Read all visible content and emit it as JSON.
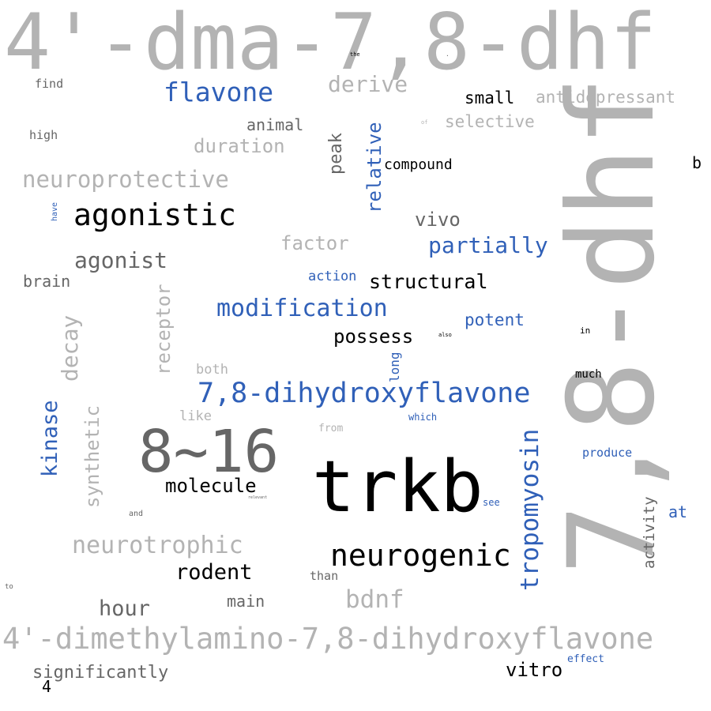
{
  "colors": {
    "black": "#000000",
    "dark_gray": "#666666",
    "light_gray": "#b3b3b3",
    "blue": "#3060b8"
  },
  "words": [
    {
      "text": "4'-dma-7,8-dhf",
      "color": "light_gray",
      "orientation": "horizontal"
    },
    {
      "text": "7,8-dhf",
      "color": "light_gray",
      "orientation": "vertical"
    },
    {
      "text": "trkb",
      "color": "black",
      "orientation": "horizontal"
    },
    {
      "text": "8~16",
      "color": "dark_gray",
      "orientation": "horizontal"
    },
    {
      "text": "4'-dimethylamino-7,8-dihydroxyflavone",
      "color": "light_gray",
      "orientation": "horizontal"
    },
    {
      "text": "7,8-dihydroxyflavone",
      "color": "blue",
      "orientation": "horizontal"
    },
    {
      "text": "agonistic",
      "color": "black",
      "orientation": "horizontal"
    },
    {
      "text": "neurogenic",
      "color": "black",
      "orientation": "horizontal"
    },
    {
      "text": "tropomyosin",
      "color": "blue",
      "orientation": "vertical"
    },
    {
      "text": "flavone",
      "color": "blue",
      "orientation": "horizontal"
    },
    {
      "text": "modification",
      "color": "blue",
      "orientation": "horizontal"
    },
    {
      "text": "neurotrophic",
      "color": "light_gray",
      "orientation": "horizontal"
    },
    {
      "text": "neuroprotective",
      "color": "light_gray",
      "orientation": "horizontal"
    },
    {
      "text": "agonist",
      "color": "dark_gray",
      "orientation": "horizontal"
    },
    {
      "text": "kinase",
      "color": "blue",
      "orientation": "vertical"
    },
    {
      "text": "decay",
      "color": "light_gray",
      "orientation": "vertical"
    },
    {
      "text": "synthetic",
      "color": "light_gray",
      "orientation": "vertical"
    },
    {
      "text": "receptor",
      "color": "light_gray",
      "orientation": "vertical"
    },
    {
      "text": "rodent",
      "color": "black",
      "orientation": "horizontal"
    },
    {
      "text": "bdnf",
      "color": "light_gray",
      "orientation": "horizontal"
    },
    {
      "text": "hour",
      "color": "dark_gray",
      "orientation": "horizontal"
    },
    {
      "text": "molecule",
      "color": "black",
      "orientation": "horizontal"
    },
    {
      "text": "partially",
      "color": "blue",
      "orientation": "horizontal"
    },
    {
      "text": "structural",
      "color": "black",
      "orientation": "horizontal"
    },
    {
      "text": "possess",
      "color": "black",
      "orientation": "horizontal"
    },
    {
      "text": "derive",
      "color": "light_gray",
      "orientation": "horizontal"
    },
    {
      "text": "relative",
      "color": "blue",
      "orientation": "vertical"
    },
    {
      "text": "significantly",
      "color": "dark_gray",
      "orientation": "horizontal"
    },
    {
      "text": "vitro",
      "color": "black",
      "orientation": "horizontal"
    },
    {
      "text": "vivo",
      "color": "dark_gray",
      "orientation": "horizontal"
    },
    {
      "text": "factor",
      "color": "light_gray",
      "orientation": "horizontal"
    },
    {
      "text": "duration",
      "color": "light_gray",
      "orientation": "horizontal"
    },
    {
      "text": "peak",
      "color": "dark_gray",
      "orientation": "vertical"
    },
    {
      "text": "antidepressant",
      "color": "light_gray",
      "orientation": "horizontal"
    },
    {
      "text": "selective",
      "color": "light_gray",
      "orientation": "horizontal"
    },
    {
      "text": "small",
      "color": "black",
      "orientation": "horizontal"
    },
    {
      "text": "potent",
      "color": "blue",
      "orientation": "horizontal"
    },
    {
      "text": "activity",
      "color": "dark_gray",
      "orientation": "vertical"
    },
    {
      "text": "animal",
      "color": "dark_gray",
      "orientation": "horizontal"
    },
    {
      "text": "brain",
      "color": "dark_gray",
      "orientation": "horizontal"
    },
    {
      "text": "main",
      "color": "dark_gray",
      "orientation": "horizontal"
    },
    {
      "text": "compound",
      "color": "black",
      "orientation": "horizontal"
    },
    {
      "text": "at",
      "color": "blue",
      "orientation": "horizontal"
    },
    {
      "text": "action",
      "color": "blue",
      "orientation": "horizontal"
    },
    {
      "text": "long",
      "color": "blue",
      "orientation": "vertical"
    },
    {
      "text": "both",
      "color": "light_gray",
      "orientation": "horizontal"
    },
    {
      "text": "like",
      "color": "light_gray",
      "orientation": "horizontal"
    },
    {
      "text": "produce",
      "color": "blue",
      "orientation": "horizontal"
    },
    {
      "text": "b",
      "color": "black",
      "orientation": "horizontal"
    },
    {
      "text": "4",
      "color": "black",
      "orientation": "horizontal"
    },
    {
      "text": "find",
      "color": "dark_gray",
      "orientation": "horizontal"
    },
    {
      "text": "high",
      "color": "dark_gray",
      "orientation": "horizontal"
    },
    {
      "text": "than",
      "color": "dark_gray",
      "orientation": "horizontal"
    },
    {
      "text": "much",
      "color": "black",
      "orientation": "horizontal"
    },
    {
      "text": "effect",
      "color": "blue",
      "orientation": "horizontal"
    },
    {
      "text": "from",
      "color": "light_gray",
      "orientation": "horizontal"
    },
    {
      "text": "which",
      "color": "blue",
      "orientation": "horizontal"
    },
    {
      "text": "see",
      "color": "blue",
      "orientation": "horizontal"
    },
    {
      "text": "in",
      "color": "black",
      "orientation": "horizontal"
    },
    {
      "text": "and",
      "color": "dark_gray",
      "orientation": "horizontal"
    },
    {
      "text": "have",
      "color": "blue",
      "orientation": "vertical"
    },
    {
      "text": "to",
      "color": "dark_gray",
      "orientation": "horizontal"
    },
    {
      "text": "the",
      "color": "black",
      "orientation": "horizontal"
    },
    {
      "text": "of",
      "color": "light_gray",
      "orientation": "horizontal"
    },
    {
      "text": "also",
      "color": "black",
      "orientation": "horizontal"
    },
    {
      "text": "relevant",
      "color": "dark_gray",
      "orientation": "horizontal"
    },
    {
      "text": ".",
      "color": "dark_gray",
      "orientation": "horizontal"
    }
  ]
}
